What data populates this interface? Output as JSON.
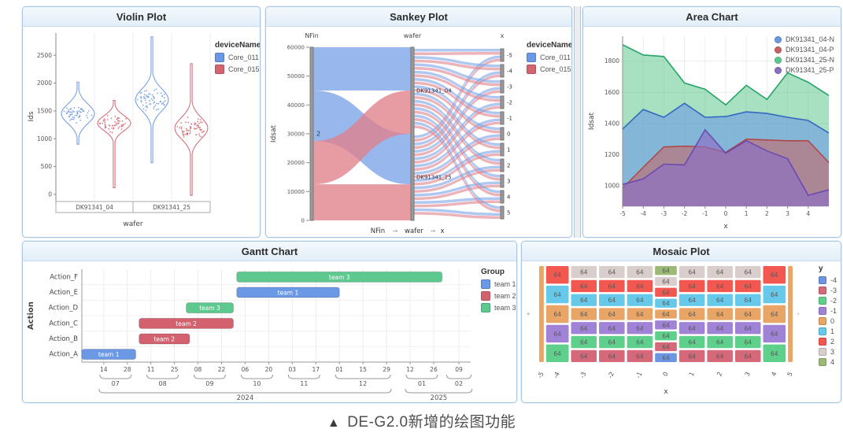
{
  "caption": {
    "marker": "▲",
    "text": "DE-G2.0新增的绘图功能"
  },
  "theme": {
    "panel_border": "#a9c7e4",
    "axis_color": "#999999",
    "grid_color": "#ececec",
    "text_color": "#555555",
    "node_color": "#9a9a9a"
  },
  "chart_data": [
    {
      "type": "violin",
      "title": "Violin Plot",
      "xlabel": "wafer",
      "ylabel": "Ids",
      "ylim": [
        -100,
        2900
      ],
      "yticks": [
        0,
        500,
        1000,
        1500,
        2000,
        2500
      ],
      "groups": [
        "DK91341_04",
        "DK91341_25"
      ],
      "legend": {
        "title": "deviceName",
        "items": [
          {
            "label": "Core_011",
            "color": "#6c99e6"
          },
          {
            "label": "Core_015",
            "color": "#d4656f"
          }
        ]
      },
      "violins": [
        {
          "group": "DK91341_04",
          "series": "Core_011",
          "color": "#6c99e6",
          "center": 1450,
          "spread": 175,
          "min": 900,
          "max": 2020,
          "n_points": 55
        },
        {
          "group": "DK91341_04",
          "series": "Core_015",
          "color": "#d4656f",
          "center": 1280,
          "spread": 135,
          "min": 120,
          "max": 1690,
          "n_points": 55
        },
        {
          "group": "DK91341_25",
          "series": "Core_011",
          "color": "#6c99e6",
          "center": 1700,
          "spread": 195,
          "min": 570,
          "max": 2830,
          "n_points": 65
        },
        {
          "group": "DK91341_25",
          "series": "Core_015",
          "color": "#d4656f",
          "center": 1190,
          "spread": 190,
          "min": -20,
          "max": 2350,
          "n_points": 65
        }
      ]
    },
    {
      "type": "sankey",
      "title": "Sankey Plot",
      "ylabel": "Idsat",
      "yticks": [
        0,
        10000,
        20000,
        30000,
        40000,
        50000,
        60000
      ],
      "columns": [
        "NFin",
        "wafer",
        "x"
      ],
      "breadcrumb": {
        "items": [
          "NFin",
          "wafer",
          "x"
        ],
        "separator": "→"
      },
      "legend": {
        "title": "deviceName",
        "items": [
          {
            "label": "Core_011",
            "color": "#6c99e6"
          },
          {
            "label": "Core_015",
            "color": "#d4656f"
          }
        ]
      },
      "colors": {
        "blue": "#7aa3e8",
        "red": "#e0808a"
      },
      "left_nodes": [
        {
          "label": "2",
          "v0": 0,
          "v1": 60000
        }
      ],
      "mid_nodes": [
        {
          "label": "DK91341_04",
          "v0": 30000,
          "v1": 60000,
          "label_v": 45000
        },
        {
          "label": "DK91341_25",
          "v0": 0,
          "v1": 30000,
          "label_v": 15000
        }
      ],
      "right_nodes": [
        "-5",
        "-4",
        "-3",
        "-2",
        "-1",
        "0",
        "1",
        "2",
        "3",
        "4",
        "5"
      ],
      "flows_left_mid": [
        {
          "color": "blue",
          "l": [
            45000,
            60000
          ],
          "m": [
            45000,
            60000
          ]
        },
        {
          "color": "blue",
          "l": [
            27500,
            45000
          ],
          "m": [
            12500,
            30000
          ]
        },
        {
          "color": "red",
          "l": [
            12500,
            27500
          ],
          "m": [
            30000,
            45000
          ]
        },
        {
          "color": "red",
          "l": [
            0,
            12500
          ],
          "m": [
            0,
            12500
          ]
        }
      ]
    },
    {
      "type": "area",
      "title": "Area Chart",
      "xlabel": "x",
      "ylabel": "Idsat",
      "x": [
        -5,
        -4,
        -3,
        -2,
        -1,
        0,
        1,
        2,
        3,
        4,
        5
      ],
      "xticks": [
        -5,
        -4,
        -3,
        -2,
        -1,
        0,
        1,
        2,
        3,
        4
      ],
      "ylim": [
        870,
        1960
      ],
      "yticks": [
        1000,
        1200,
        1400,
        1600,
        1800
      ],
      "legend": {
        "items": [
          {
            "label": "DK91341_04-N",
            "color": "#6c99e6"
          },
          {
            "label": "DK91341_04-P",
            "color": "#cc6060"
          },
          {
            "label": "DK91341_25-N",
            "color": "#5ec98f"
          },
          {
            "label": "DK91341_25-P",
            "color": "#8a6fc4"
          }
        ]
      },
      "series": [
        {
          "name": "DK91341_25-N",
          "fill": "#5ec98f",
          "stroke": "#27a567",
          "opacity": 0.55,
          "values": [
            1905,
            1840,
            1830,
            1660,
            1620,
            1520,
            1645,
            1555,
            1725,
            1665,
            1580
          ]
        },
        {
          "name": "DK91341_04-N",
          "fill": "#6c99e6",
          "stroke": "#3468bd",
          "opacity": 0.6,
          "values": [
            1365,
            1490,
            1440,
            1530,
            1440,
            1445,
            1475,
            1465,
            1440,
            1420,
            1340
          ]
        },
        {
          "name": "DK91341_04-P",
          "fill": "#cc6060",
          "stroke": "#b04848",
          "opacity": 0.55,
          "values": [
            985,
            1120,
            1250,
            1255,
            1250,
            1215,
            1300,
            1295,
            1290,
            1290,
            1150
          ]
        },
        {
          "name": "DK91341_25-P",
          "fill": "#8a6fc4",
          "stroke": "#6a4ab0",
          "opacity": 0.65,
          "values": [
            1010,
            1045,
            1140,
            1135,
            1360,
            1210,
            1290,
            1225,
            1175,
            940,
            975
          ]
        }
      ]
    },
    {
      "type": "gantt",
      "title": "Gantt Chart",
      "ylabel": "Action",
      "categories": [
        "Action_F",
        "Action_E",
        "Action_D",
        "Action_C",
        "Action_B",
        "Action_A"
      ],
      "legend": {
        "title": "Group",
        "items": [
          {
            "label": "team 1",
            "color": "#6c99e6"
          },
          {
            "label": "team 2",
            "color": "#d4626e"
          },
          {
            "label": "team 3",
            "color": "#5ec98f"
          }
        ]
      },
      "teams": {
        "team 1": "#6c99e6",
        "team 2": "#d4626e",
        "team 3": "#5ec98f"
      },
      "bars": [
        {
          "action": "Action_A",
          "team": "team 1",
          "label": "team 1",
          "d0": 0,
          "d1": 32
        },
        {
          "action": "Action_B",
          "team": "team 2",
          "label": "team 2",
          "d0": 34,
          "d1": 64
        },
        {
          "action": "Action_C",
          "team": "team 2",
          "label": "team 2",
          "d0": 34,
          "d1": 90
        },
        {
          "action": "Action_D",
          "team": "team 3",
          "label": "team 3",
          "d0": 62,
          "d1": 90
        },
        {
          "action": "Action_E",
          "team": "team 1",
          "label": "team 1",
          "d0": 92,
          "d1": 153
        },
        {
          "action": "Action_F",
          "team": "team 3",
          "label": "team 3",
          "d0": 92,
          "d1": 214
        }
      ],
      "axis": {
        "range_days": 231,
        "ticks": [
          {
            "d": 13,
            "label": "14"
          },
          {
            "d": 27,
            "label": "28"
          },
          {
            "d": 41,
            "label": "11"
          },
          {
            "d": 55,
            "label": "25"
          },
          {
            "d": 69,
            "label": "08"
          },
          {
            "d": 83,
            "label": "22"
          },
          {
            "d": 97,
            "label": "06"
          },
          {
            "d": 111,
            "label": "20"
          },
          {
            "d": 125,
            "label": "03"
          },
          {
            "d": 139,
            "label": "17"
          },
          {
            "d": 153,
            "label": "01"
          },
          {
            "d": 167,
            "label": "15"
          },
          {
            "d": 181,
            "label": "29"
          },
          {
            "d": 195,
            "label": "12"
          },
          {
            "d": 209,
            "label": "26"
          },
          {
            "d": 224,
            "label": "09"
          }
        ],
        "months": [
          {
            "label": "07",
            "d0": 13,
            "d1": 27
          },
          {
            "label": "08",
            "d0": 41,
            "d1": 55
          },
          {
            "label": "09",
            "d0": 69,
            "d1": 83
          },
          {
            "label": "10",
            "d0": 97,
            "d1": 111
          },
          {
            "label": "11",
            "d0": 125,
            "d1": 139
          },
          {
            "label": "12",
            "d0": 153,
            "d1": 181
          },
          {
            "label": "01",
            "d0": 195,
            "d1": 209
          },
          {
            "label": "02",
            "d0": 219,
            "d1": 229
          }
        ],
        "years": [
          {
            "label": "2024",
            "d0": 13,
            "d1": 181
          },
          {
            "label": "2025",
            "d0": 195,
            "d1": 229
          }
        ]
      }
    },
    {
      "type": "mosaic",
      "title": "Mosaic Plot",
      "xlabel": "x",
      "cell_value": "64",
      "legend": {
        "title": "y",
        "items": [
          {
            "label": "-4",
            "color": "#6c96e4"
          },
          {
            "label": "-3",
            "color": "#d56879"
          },
          {
            "label": "-2",
            "color": "#5fd08c"
          },
          {
            "label": "-1",
            "color": "#a082d6"
          },
          {
            "label": "0",
            "color": "#e8a566"
          },
          {
            "label": "1",
            "color": "#66c9ea"
          },
          {
            "label": "2",
            "color": "#f25850"
          },
          {
            "label": "3",
            "color": "#d9cecb"
          },
          {
            "label": "4",
            "color": "#9cba76"
          }
        ]
      },
      "colors": {
        "-4": "#6c96e4",
        "-3": "#d56879",
        "-2": "#5fd08c",
        "-1": "#a082d6",
        "0": "#e8a566",
        "1": "#66c9ea",
        "2": "#f25850",
        "3": "#d9cecb",
        "4": "#9cba76"
      },
      "columns": [
        {
          "x": "-5",
          "w": 0.18,
          "cells": [
            "0"
          ]
        },
        {
          "x": "-4",
          "w": 0.88,
          "cells": [
            "2",
            "1",
            "0",
            "-1",
            "-2"
          ]
        },
        {
          "x": "-3",
          "w": 1.0,
          "cells": [
            "3",
            "2",
            "1",
            "0",
            "-1",
            "-2",
            "-3"
          ]
        },
        {
          "x": "-2",
          "w": 1.0,
          "cells": [
            "3",
            "2",
            "1",
            "0",
            "-1",
            "-2",
            "-3"
          ]
        },
        {
          "x": "-1",
          "w": 1.0,
          "cells": [
            "3",
            "2",
            "1",
            "0",
            "-1",
            "-2",
            "-3"
          ]
        },
        {
          "x": "0",
          "w": 0.85,
          "cells": [
            "4",
            "3",
            "2",
            "1",
            "0",
            "-1",
            "-2",
            "-3",
            "-4"
          ]
        },
        {
          "x": "1",
          "w": 1.0,
          "cells": [
            "3",
            "2",
            "1",
            "0",
            "-1",
            "-2",
            "-3"
          ]
        },
        {
          "x": "2",
          "w": 1.0,
          "cells": [
            "3",
            "2",
            "1",
            "0",
            "-1",
            "-2",
            "-3"
          ]
        },
        {
          "x": "3",
          "w": 1.0,
          "cells": [
            "3",
            "2",
            "1",
            "0",
            "-1",
            "-2",
            "-3"
          ]
        },
        {
          "x": "4",
          "w": 0.88,
          "cells": [
            "2",
            "1",
            "0",
            "-1",
            "-2"
          ]
        },
        {
          "x": "5",
          "w": 0.18,
          "cells": [
            "0"
          ]
        }
      ]
    }
  ]
}
